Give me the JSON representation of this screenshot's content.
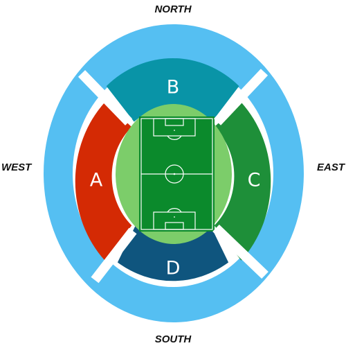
{
  "directions": {
    "north": "NORTH",
    "south": "SOUTH",
    "west": "WEST",
    "east": "EAST"
  },
  "sections": [
    {
      "id": "A",
      "label": "A",
      "side": "west",
      "color": "#d42a04"
    },
    {
      "id": "B",
      "label": "B",
      "side": "north",
      "color": "#0994a7"
    },
    {
      "id": "C",
      "label": "C",
      "side": "east",
      "color": "#1e8f39"
    },
    {
      "id": "D",
      "label": "D",
      "side": "south",
      "color": "#0f557e"
    }
  ],
  "colors": {
    "outer_ring": "#55bff2",
    "gap": "#ffffff",
    "inner_field": "#7ccd6a",
    "pitch": "#0b8a2c",
    "pitch_lines": "#ffffff"
  }
}
